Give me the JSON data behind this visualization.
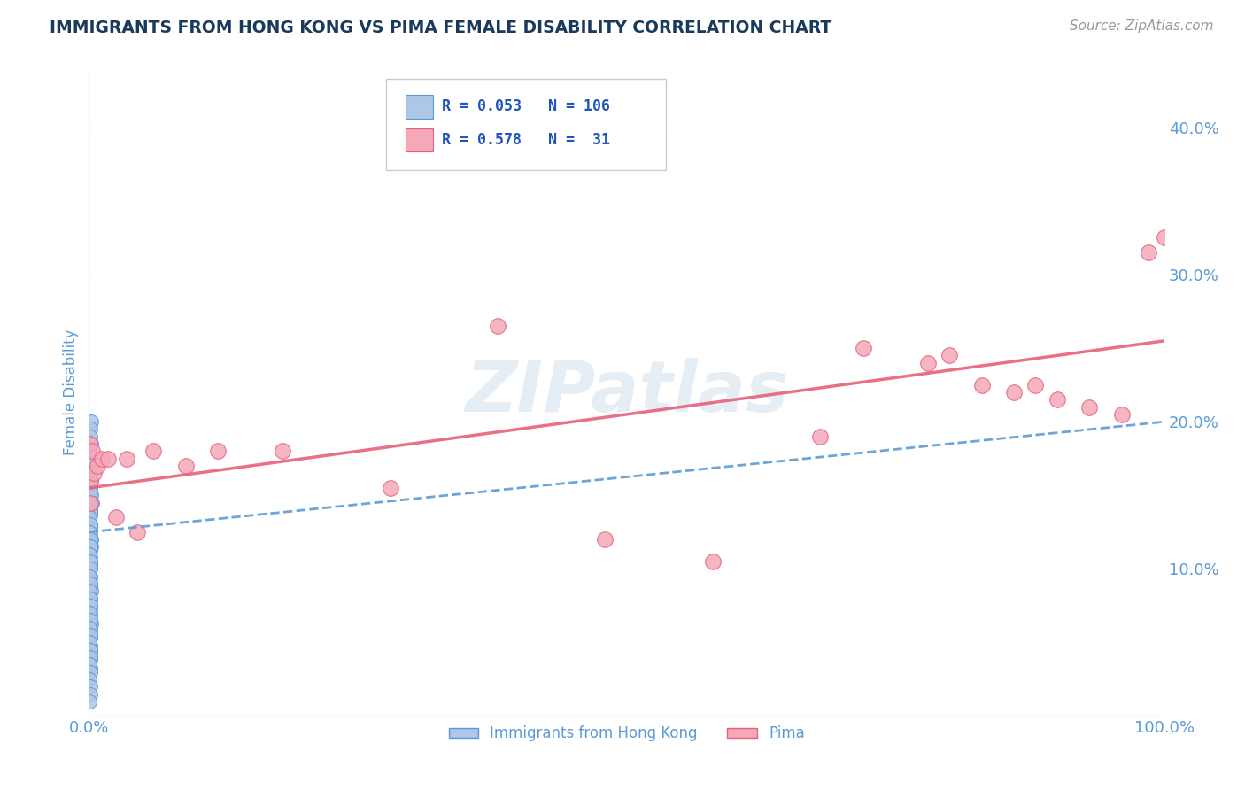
{
  "title": "IMMIGRANTS FROM HONG KONG VS PIMA FEMALE DISABILITY CORRELATION CHART",
  "source_text": "Source: ZipAtlas.com",
  "ylabel": "Female Disability",
  "legend_label1": "Immigrants from Hong Kong",
  "legend_label2": "Pima",
  "r1": 0.053,
  "n1": 106,
  "r2": 0.578,
  "n2": 31,
  "watermark": "ZIPatlas",
  "blue_color": "#aec6e8",
  "pink_color": "#f4a8b8",
  "blue_edge_color": "#5b9bd5",
  "pink_edge_color": "#e8607a",
  "blue_line_color": "#5b9bd5",
  "pink_line_color": "#e8607a",
  "title_color": "#1a3a5c",
  "axis_tick_color": "#5b9bd5",
  "legend_r_color": "#2255bb",
  "grid_color": "#c8d8e8",
  "blue_scatter_x": [
    0.0005,
    0.001,
    0.0008,
    0.0015,
    0.001,
    0.0012,
    0.0018,
    0.002,
    0.0007,
    0.0013,
    0.0006,
    0.0014,
    0.0016,
    0.0009,
    0.0011,
    0.0007,
    0.0013,
    0.0017,
    0.002,
    0.0008,
    0.0012,
    0.0006,
    0.0011,
    0.0007,
    0.0016,
    0.001,
    0.0008,
    0.0019,
    0.0015,
    0.0011,
    0.0007,
    0.0012,
    0.0006,
    0.0015,
    0.0011,
    0.0007,
    0.0013,
    0.0016,
    0.0008,
    0.0012,
    0.0018,
    0.0006,
    0.0011,
    0.0015,
    0.0007,
    0.0013,
    0.0006,
    0.0011,
    0.0014,
    0.0008,
    0.0012,
    0.0007,
    0.0014,
    0.0011,
    0.0006,
    0.0012,
    0.0015,
    0.0007,
    0.0013,
    0.0006,
    0.0011,
    0.0007,
    0.0015,
    0.0012,
    0.0006,
    0.0019,
    0.0011,
    0.0006,
    0.0015,
    0.001,
    0.0007,
    0.0012,
    0.0006,
    0.0015,
    0.001,
    0.0007,
    0.0012,
    0.0015,
    0.0006,
    0.0011,
    0.0006,
    0.0011,
    0.0014,
    0.0007,
    0.0012,
    0.0006,
    0.0011,
    0.0007,
    0.0015,
    0.001,
    0.0007,
    0.0011,
    0.0006,
    0.0015,
    0.001,
    0.0007,
    0.002,
    0.0011,
    0.0016,
    0.0025,
    0.001,
    0.0006,
    0.0014,
    0.0006,
    0.001,
    0.003
  ],
  "blue_scatter_y": [
    0.155,
    0.148,
    0.142,
    0.136,
    0.13,
    0.125,
    0.12,
    0.115,
    0.11,
    0.108,
    0.105,
    0.103,
    0.1,
    0.098,
    0.095,
    0.093,
    0.09,
    0.088,
    0.085,
    0.082,
    0.08,
    0.078,
    0.075,
    0.073,
    0.07,
    0.068,
    0.065,
    0.063,
    0.06,
    0.058,
    0.055,
    0.053,
    0.05,
    0.048,
    0.045,
    0.043,
    0.04,
    0.038,
    0.035,
    0.033,
    0.15,
    0.148,
    0.143,
    0.138,
    0.133,
    0.128,
    0.123,
    0.118,
    0.113,
    0.109,
    0.104,
    0.099,
    0.094,
    0.089,
    0.084,
    0.079,
    0.074,
    0.069,
    0.064,
    0.059,
    0.054,
    0.049,
    0.044,
    0.039,
    0.034,
    0.16,
    0.155,
    0.15,
    0.145,
    0.14,
    0.135,
    0.13,
    0.125,
    0.12,
    0.115,
    0.11,
    0.105,
    0.1,
    0.095,
    0.09,
    0.085,
    0.08,
    0.075,
    0.07,
    0.065,
    0.06,
    0.055,
    0.05,
    0.045,
    0.04,
    0.035,
    0.03,
    0.025,
    0.02,
    0.015,
    0.01,
    0.2,
    0.195,
    0.19,
    0.185,
    0.178,
    0.172,
    0.165,
    0.158,
    0.152,
    0.145
  ],
  "pink_scatter_x": [
    0.0006,
    0.001,
    0.0015,
    0.003,
    0.005,
    0.008,
    0.012,
    0.018,
    0.025,
    0.035,
    0.045,
    0.06,
    0.09,
    0.12,
    0.18,
    0.28,
    0.38,
    0.48,
    0.58,
    0.68,
    0.72,
    0.78,
    0.8,
    0.83,
    0.86,
    0.88,
    0.9,
    0.93,
    0.96,
    0.985,
    1.0
  ],
  "pink_scatter_y": [
    0.185,
    0.16,
    0.145,
    0.18,
    0.165,
    0.17,
    0.175,
    0.175,
    0.135,
    0.175,
    0.125,
    0.18,
    0.17,
    0.18,
    0.18,
    0.155,
    0.265,
    0.12,
    0.105,
    0.19,
    0.25,
    0.24,
    0.245,
    0.225,
    0.22,
    0.225,
    0.215,
    0.21,
    0.205,
    0.315,
    0.325
  ],
  "blue_line_x0": 0.0,
  "blue_line_x1": 1.0,
  "blue_line_y0": 0.125,
  "blue_line_y1": 0.2,
  "pink_line_x0": 0.0,
  "pink_line_x1": 1.0,
  "pink_line_y0": 0.155,
  "pink_line_y1": 0.255,
  "xlim": [
    0.0,
    1.0
  ],
  "ylim": [
    0.0,
    0.44
  ],
  "yticks": [
    0.1,
    0.2,
    0.3,
    0.4
  ],
  "ytick_labels": [
    "10.0%",
    "20.0%",
    "30.0%",
    "40.0%"
  ],
  "xticks": [
    0.0,
    1.0
  ],
  "xtick_labels": [
    "0.0%",
    "100.0%"
  ]
}
